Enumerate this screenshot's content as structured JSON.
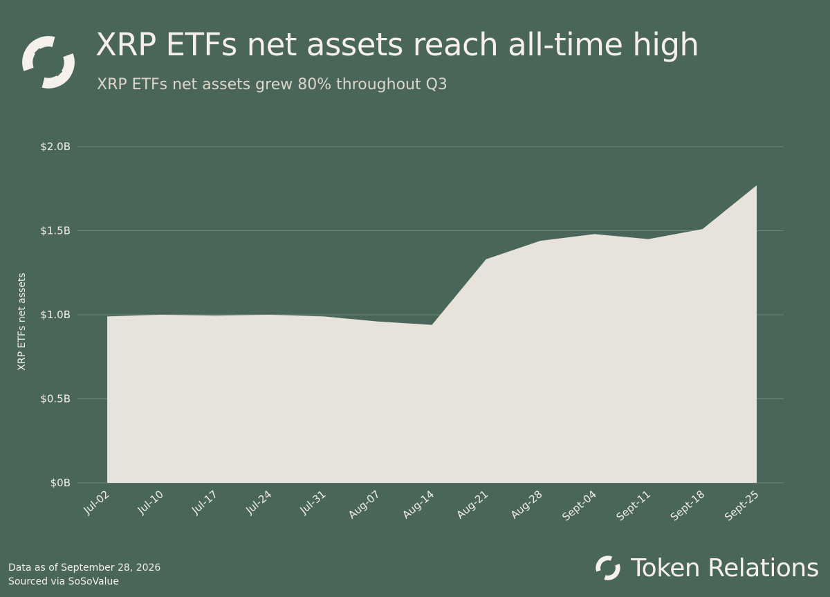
{
  "header": {
    "title": "XRP ETFs net assets reach all-time high",
    "subtitle": "XRP ETFs net assets grew 80% throughout Q3",
    "logo_icon": "token-relations-logo-icon"
  },
  "chart_data": {
    "type": "area",
    "ylabel": "XRP ETFs net assets",
    "xlabel": "",
    "categories": [
      "Jul-02",
      "Jul-10",
      "Jul-17",
      "Jul-24",
      "Jul-31",
      "Aug-07",
      "Aug-14",
      "Aug-21",
      "Aug-28",
      "Sept-04",
      "Sept-11",
      "Sept-18",
      "Sept-25"
    ],
    "series": [
      {
        "values": [
          0.99,
          1.0,
          0.995,
          1.0,
          0.99,
          0.96,
          0.94,
          1.33,
          1.44,
          1.48,
          1.45,
          1.51,
          1.77
        ]
      }
    ],
    "ylim": [
      0,
      2.0
    ],
    "yticks": [
      0,
      0.5,
      1.0,
      1.5,
      2.0
    ],
    "ytick_labels": [
      "$0B",
      "$0.5B",
      "$1.0B",
      "$1.5B",
      "$2.0B"
    ],
    "grid": true,
    "colors": {
      "area": "#e7e2da",
      "grid": "#6f8a7d",
      "background": "#4a6659"
    }
  },
  "footer": {
    "note_line1": "Data as of September 28, 2026",
    "note_line2": "Sourced via SoSoValue",
    "brand_name": "Token Relations"
  }
}
